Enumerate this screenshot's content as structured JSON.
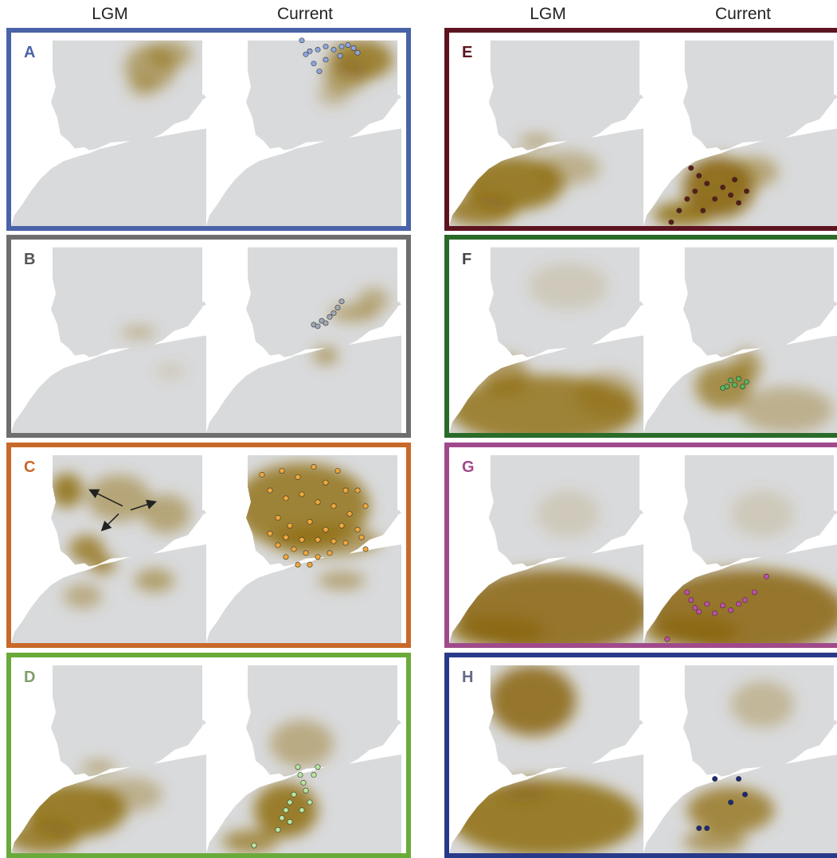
{
  "figure": {
    "columns_left": [
      "LGM",
      "Current"
    ],
    "columns_right": [
      "LGM",
      "Current"
    ],
    "panels": [
      {
        "id": "A",
        "label": "A",
        "border_color": "#4a63a8",
        "label_color": "#4a63a8",
        "dot_color": "#8fa6dc",
        "lgm_pattern": "east-spain",
        "cur_pattern": "east-spain-strong"
      },
      {
        "id": "B",
        "label": "B",
        "border_color": "#6e6e6e",
        "label_color": "#555555",
        "dot_color": "#a0a8b4",
        "lgm_pattern": "faint-south",
        "cur_pattern": "southeast-coast"
      },
      {
        "id": "C",
        "label": "C",
        "border_color": "#c8692a",
        "label_color": "#c8692a",
        "dot_color": "#f0a83a",
        "lgm_pattern": "iberia-patches",
        "cur_pattern": "iberia-full"
      },
      {
        "id": "D",
        "label": "D",
        "border_color": "#6aaa3a",
        "label_color": "#7f9f6b",
        "dot_color": "#b8e6a0",
        "lgm_pattern": "north-africa-west",
        "cur_pattern": "morocco-atlas"
      },
      {
        "id": "E",
        "label": "E",
        "border_color": "#5e1420",
        "label_color": "#5e1420",
        "dot_color": "#5a1d14",
        "lgm_pattern": "north-africa-west",
        "cur_pattern": "morocco-atlas-strong"
      },
      {
        "id": "F",
        "label": "F",
        "border_color": "#2a6b2a",
        "label_color": "#444444",
        "dot_color": "#58b558",
        "lgm_pattern": "sahara",
        "cur_pattern": "middle-atlas"
      },
      {
        "id": "G",
        "label": "G",
        "border_color": "#a04a8c",
        "label_color": "#a04a8c",
        "dot_color": "#c34ea7",
        "lgm_pattern": "sahara-wide",
        "cur_pattern": "sahara-wide"
      },
      {
        "id": "H",
        "label": "H",
        "border_color": "#2a3a8a",
        "label_color": "#666a88",
        "dot_color": "#1e2a78",
        "lgm_pattern": "iberia-center-sahara",
        "cur_pattern": "atlas-blue"
      }
    ]
  }
}
